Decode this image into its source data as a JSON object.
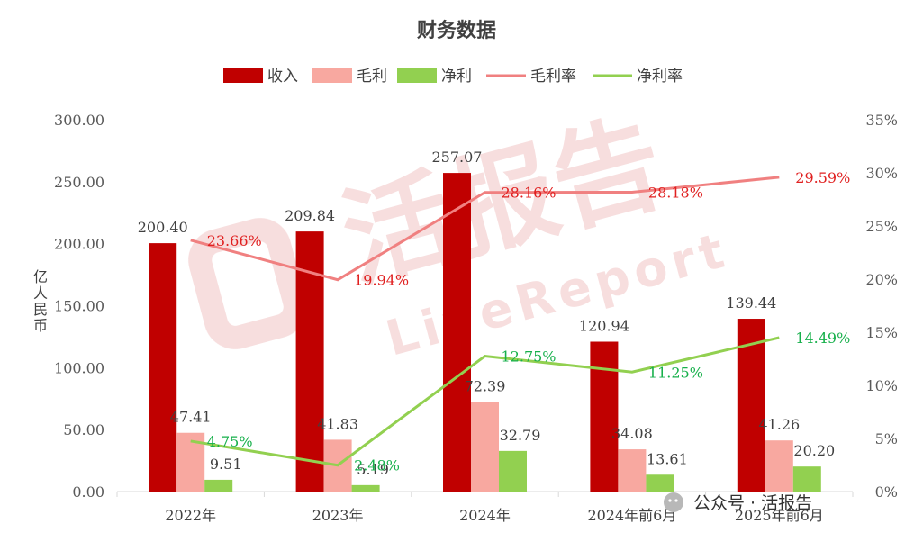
{
  "chart_data": {
    "type": "bar",
    "title": "财务数据",
    "ylabel": "亿人民币",
    "categories": [
      "2022年",
      "2023年",
      "2024年",
      "2024年前6月",
      "2025年前6月"
    ],
    "y_left_ticks": [
      "0.00",
      "50.00",
      "100.00",
      "150.00",
      "200.00",
      "250.00",
      "300.00"
    ],
    "y_right_ticks": [
      "0%",
      "5%",
      "10%",
      "15%",
      "20%",
      "25%",
      "30%",
      "35%"
    ],
    "ylim": [
      0,
      300
    ],
    "y2lim": [
      0,
      35
    ],
    "grid": false,
    "legend_position": "top",
    "series": [
      {
        "name": "收入",
        "kind": "bar",
        "color": "#c00000",
        "values": [
          200.4,
          209.84,
          257.07,
          120.94,
          139.44
        ],
        "labels": [
          "200.40",
          "209.84",
          "257.07",
          "120.94",
          "139.44"
        ]
      },
      {
        "name": "毛利",
        "kind": "bar",
        "color": "#f8a8a0",
        "values": [
          47.41,
          41.83,
          72.39,
          34.08,
          41.26
        ],
        "labels": [
          "47.41",
          "41.83",
          "72.39",
          "34.08",
          "41.26"
        ]
      },
      {
        "name": "净利",
        "kind": "bar",
        "color": "#92d050",
        "values": [
          9.51,
          5.19,
          32.79,
          13.61,
          20.2
        ],
        "labels": [
          "9.51",
          "5.19",
          "32.79",
          "13.61",
          "20.20"
        ]
      },
      {
        "name": "毛利率",
        "kind": "line",
        "axis": "right",
        "color": "#f08080",
        "values": [
          23.66,
          19.94,
          28.16,
          28.18,
          29.59
        ],
        "labels": [
          "23.66%",
          "19.94%",
          "28.16%",
          "28.18%",
          "29.59%"
        ]
      },
      {
        "name": "净利率",
        "kind": "line",
        "axis": "right",
        "color": "#92d050",
        "values": [
          4.75,
          2.48,
          12.75,
          11.25,
          14.49
        ],
        "labels": [
          "4.75%",
          "2.48%",
          "12.75%",
          "11.25%",
          "14.49%"
        ]
      }
    ]
  },
  "watermark": {
    "brand": "洞",
    "text": "LiveReport"
  },
  "wechat": {
    "text": "公众号 · 活报告"
  }
}
